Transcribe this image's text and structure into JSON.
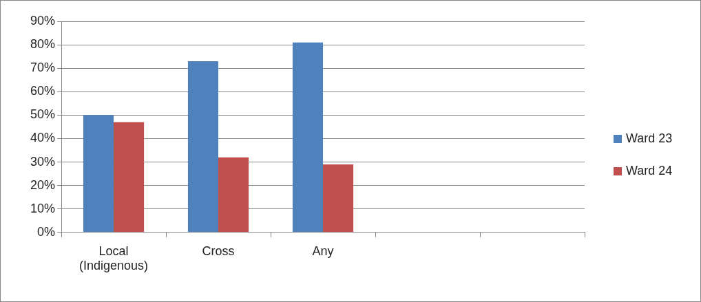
{
  "chart_data": {
    "type": "bar",
    "categories": [
      "Local (Indigenous)",
      "Cross",
      "Any",
      null,
      null
    ],
    "series": [
      {
        "name": "Ward 23",
        "color": "#4f81bd",
        "values": [
          50,
          73,
          81,
          null,
          null
        ]
      },
      {
        "name": "Ward 24",
        "color": "#c0504d",
        "values": [
          47,
          32,
          29,
          null,
          null
        ]
      }
    ],
    "ylim": [
      0,
      90
    ],
    "yticks": [
      {
        "value": 0,
        "label": "0%"
      },
      {
        "value": 10,
        "label": "10%"
      },
      {
        "value": 20,
        "label": "20%"
      },
      {
        "value": 30,
        "label": "30%"
      },
      {
        "value": 40,
        "label": "40%"
      },
      {
        "value": 50,
        "label": "50%"
      },
      {
        "value": 60,
        "label": "60%"
      },
      {
        "value": 70,
        "label": "70%"
      },
      {
        "value": 80,
        "label": "80%"
      },
      {
        "value": 90,
        "label": "90%"
      }
    ],
    "grid": "y",
    "legend": "right"
  }
}
